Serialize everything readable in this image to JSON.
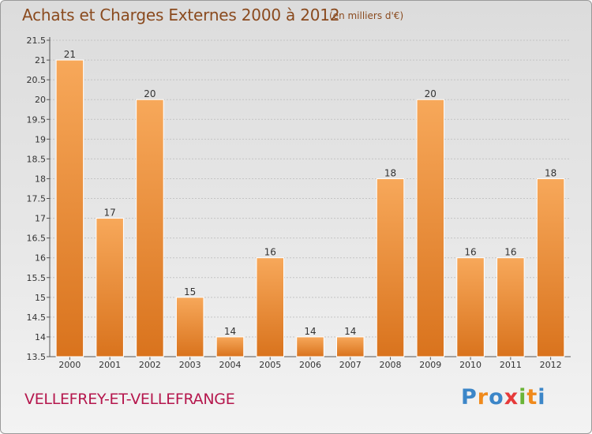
{
  "header": {
    "title": "Achats et Charges Externes 2000 à 2012",
    "subtitle": "(en milliers d'€)"
  },
  "footer": {
    "commune": "VELLEFREY-ET-VELLEFRANGE",
    "logo_letters": [
      "P",
      "r",
      "o",
      "x",
      "i",
      "t",
      "i"
    ]
  },
  "colors": {
    "bar_top": "#f7a85a",
    "bar_bottom": "#d9731d",
    "title": "#8a4a1e",
    "commune": "#b5174d"
  },
  "chart_data": {
    "type": "bar",
    "title": "Achats et Charges Externes 2000 à 2012",
    "subtitle": "(en milliers d'€)",
    "xlabel": "",
    "ylabel": "",
    "categories": [
      "2000",
      "2001",
      "2002",
      "2003",
      "2004",
      "2005",
      "2006",
      "2007",
      "2008",
      "2009",
      "2010",
      "2011",
      "2012"
    ],
    "values": [
      21,
      17,
      20,
      15,
      14,
      16,
      14,
      14,
      18,
      20,
      16,
      16,
      18
    ],
    "ylim": [
      13.5,
      21.5
    ],
    "yticks": [
      "13.5",
      "14",
      "14.5",
      "15",
      "15.5",
      "16",
      "16.5",
      "17",
      "17.5",
      "18",
      "18.5",
      "19",
      "19.5",
      "20",
      "20.5",
      "21",
      "21.5"
    ],
    "grid": true,
    "legend": "none"
  }
}
